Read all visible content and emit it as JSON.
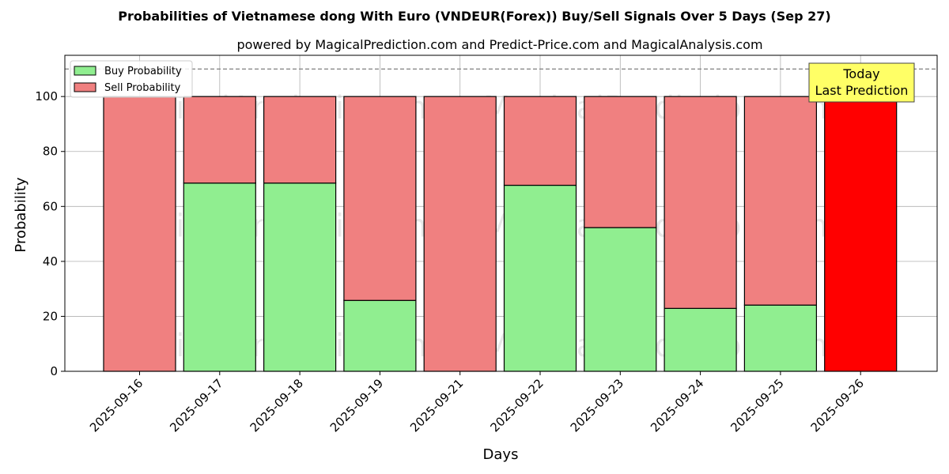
{
  "chart_data": {
    "type": "bar",
    "stacked": true,
    "title": "Probabilities of Vietnamese dong With Euro (VNDEUR(Forex)) Buy/Sell Signals Over 5 Days (Sep 27)",
    "subtitle": "powered by MagicalPrediction.com and Predict-Price.com and MagicalAnalysis.com",
    "xlabel": "Days",
    "ylabel": "Probability",
    "ylim": [
      0,
      115
    ],
    "yticks": [
      0,
      20,
      40,
      60,
      80,
      100
    ],
    "grid": true,
    "reference_line": {
      "y": 110,
      "style": "dashed",
      "color": "#808080"
    },
    "categories": [
      "2025-09-16",
      "2025-09-17",
      "2025-09-18",
      "2025-09-19",
      "2025-09-21",
      "2025-09-22",
      "2025-09-23",
      "2025-09-24",
      "2025-09-25",
      "2025-09-26"
    ],
    "series": [
      {
        "name": "Buy Probability",
        "color": "#90ee90",
        "values": [
          0,
          68.5,
          68.5,
          25.8,
          0,
          67.7,
          52.3,
          22.9,
          24.1,
          0
        ]
      },
      {
        "name": "Sell Probability",
        "color": "#f08080",
        "values": [
          100,
          31.5,
          31.5,
          74.2,
          100,
          32.3,
          47.7,
          77.1,
          75.9,
          100
        ]
      }
    ],
    "highlight": {
      "index": 9,
      "color": "#ff0000"
    },
    "legend": {
      "position": "top-left"
    },
    "annotation": {
      "lines": [
        "Today",
        "Last Prediction"
      ],
      "background": "#ffff66",
      "position": "top-right"
    },
    "watermarks": [
      "MagicalAnalysis.com",
      "MagicalPrediction.com"
    ]
  }
}
